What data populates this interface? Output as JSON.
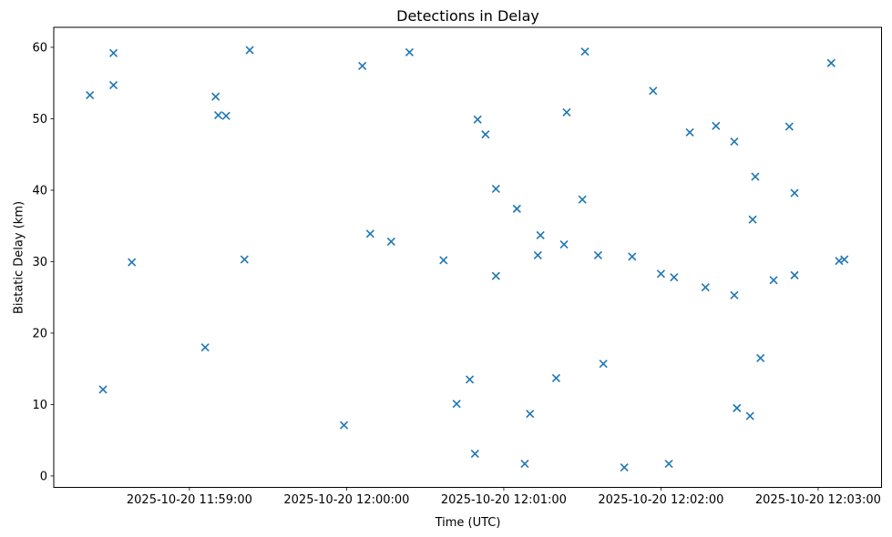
{
  "chart_data": {
    "type": "scatter",
    "title": "Detections in Delay",
    "xlabel": "Time (UTC)",
    "ylabel": "Bistatic Delay (km)",
    "grid": false,
    "legend": null,
    "marker": {
      "shape": "x",
      "color": "#1f77b4",
      "size": 8
    },
    "axis_color": "#000000",
    "x_axis": {
      "date": "2025-10-20",
      "reference_time": "11:59:00",
      "tick_labels": [
        "2025-10-20 11:59:00",
        "2025-10-20 12:00:00",
        "2025-10-20 12:01:00",
        "2025-10-20 12:02:00",
        "2025-10-20 12:03:00"
      ],
      "tick_offsets_seconds": [
        0,
        60,
        120,
        180,
        240
      ],
      "xlim_seconds": [
        -51.8,
        264.2
      ]
    },
    "y_axis": {
      "ticks": [
        0,
        10,
        20,
        30,
        40,
        50,
        60
      ],
      "ylim": [
        -1.6,
        62.8
      ]
    },
    "points": [
      [
        "11:58:22",
        53.3
      ],
      [
        "11:58:27",
        12.1
      ],
      [
        "11:58:31",
        59.2
      ],
      [
        "11:58:31",
        54.7
      ],
      [
        "11:58:38",
        29.9
      ],
      [
        "11:59:06",
        18.0
      ],
      [
        "11:59:10",
        53.1
      ],
      [
        "11:59:11",
        50.5
      ],
      [
        "11:59:14",
        50.4
      ],
      [
        "11:59:21",
        30.3
      ],
      [
        "11:59:23",
        59.6
      ],
      [
        "11:59:59",
        7.1
      ],
      [
        "12:00:06",
        57.4
      ],
      [
        "12:00:09",
        33.9
      ],
      [
        "12:00:17",
        32.8
      ],
      [
        "12:00:24",
        59.3
      ],
      [
        "12:00:37",
        30.2
      ],
      [
        "12:00:42",
        10.1
      ],
      [
        "12:00:47",
        13.5
      ],
      [
        "12:00:49",
        3.1
      ],
      [
        "12:00:50",
        49.9
      ],
      [
        "12:00:53",
        47.8
      ],
      [
        "12:00:57",
        40.2
      ],
      [
        "12:00:57",
        28.0
      ],
      [
        "12:01:05",
        37.4
      ],
      [
        "12:01:08",
        1.7
      ],
      [
        "12:01:10",
        8.7
      ],
      [
        "12:01:13",
        30.9
      ],
      [
        "12:01:14",
        33.7
      ],
      [
        "12:01:20",
        13.7
      ],
      [
        "12:01:23",
        32.4
      ],
      [
        "12:01:24",
        50.9
      ],
      [
        "12:01:30",
        38.7
      ],
      [
        "12:01:31",
        59.4
      ],
      [
        "12:01:36",
        30.9
      ],
      [
        "12:01:38",
        15.7
      ],
      [
        "12:01:46",
        1.2
      ],
      [
        "12:01:49",
        30.7
      ],
      [
        "12:01:57",
        53.9
      ],
      [
        "12:02:00",
        28.3
      ],
      [
        "12:02:03",
        1.7
      ],
      [
        "12:02:05",
        27.8
      ],
      [
        "12:02:11",
        48.1
      ],
      [
        "12:02:17",
        26.4
      ],
      [
        "12:02:21",
        49.0
      ],
      [
        "12:02:28",
        25.3
      ],
      [
        "12:02:28",
        46.8
      ],
      [
        "12:02:29",
        9.5
      ],
      [
        "12:02:34",
        8.4
      ],
      [
        "12:02:35",
        35.9
      ],
      [
        "12:02:36",
        41.9
      ],
      [
        "12:02:38",
        16.5
      ],
      [
        "12:02:43",
        27.4
      ],
      [
        "12:02:49",
        48.9
      ],
      [
        "12:02:51",
        39.6
      ],
      [
        "12:02:51",
        28.1
      ],
      [
        "12:03:05",
        57.8
      ],
      [
        "12:03:08",
        30.1
      ],
      [
        "12:03:10",
        30.3
      ]
    ]
  }
}
